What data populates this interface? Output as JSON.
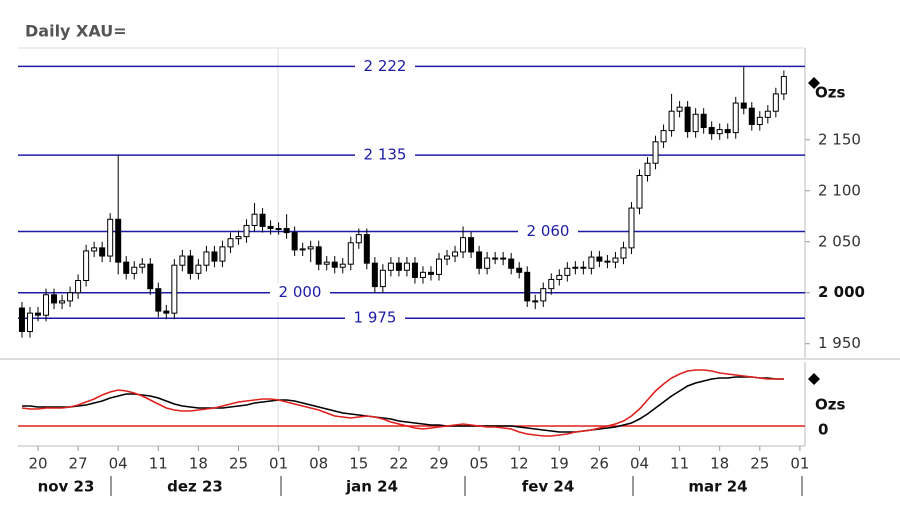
{
  "chart_data": {
    "type": "candlestick",
    "title": "Daily XAU=",
    "categories": [
      null,
      null,
      "20",
      null,
      null,
      null,
      null,
      "27",
      null,
      null,
      null,
      null,
      "04",
      null,
      null,
      null,
      null,
      "11",
      null,
      null,
      null,
      null,
      "18",
      null,
      null,
      null,
      null,
      "25",
      null,
      null,
      null,
      null,
      "01",
      null,
      null,
      null,
      null,
      "08",
      null,
      null,
      null,
      null,
      "15",
      null,
      null,
      null,
      null,
      "22",
      null,
      null,
      null,
      null,
      "29",
      null,
      null,
      null,
      null,
      "05",
      null,
      null,
      null,
      null,
      "12",
      null,
      null,
      null,
      null,
      "19",
      null,
      null,
      null,
      null,
      "26",
      null,
      null,
      null,
      null,
      "04",
      null,
      null,
      null,
      null,
      "11",
      null,
      null,
      null,
      null,
      "18",
      null,
      null,
      null,
      null,
      "25",
      null,
      null,
      null,
      null,
      "01"
    ],
    "months": [
      "nov 23",
      "dez 23",
      "jan 24",
      "fev 24",
      "mar 24"
    ],
    "open": [
      1985,
      1962,
      1980,
      1978,
      1998,
      1990,
      1992,
      2000,
      2012,
      2041,
      2044,
      2036,
      2072,
      2030,
      2019,
      2025,
      2028,
      2004,
      1982,
      1980,
      2027,
      2036,
      2019,
      2027,
      2040,
      2031,
      2045,
      2053,
      2055,
      2066,
      2077,
      2065,
      2063,
      2063,
      2059,
      2042,
      2043,
      2045,
      2028,
      2030,
      2025,
      2028,
      2049,
      2057,
      2029,
      2006,
      2022,
      2029,
      2022,
      2029,
      2015,
      2020,
      2018,
      2033,
      2036,
      2040,
      2054,
      2040,
      2024,
      2034,
      2034,
      2033,
      2024,
      2020,
      1992,
      1992,
      2004,
      2013,
      2017,
      2024,
      2025,
      2024,
      2035,
      2031,
      2030,
      2034,
      2044,
      2083,
      2115,
      2127,
      2148,
      2159,
      2178,
      2182,
      2158,
      2175,
      2162,
      2156,
      2160,
      2157,
      2186,
      2181,
      2165,
      2172,
      2178,
      2195,
      null,
      null
    ],
    "high": [
      1991,
      1986,
      1986,
      2004,
      2004,
      1998,
      2006,
      2018,
      2047,
      2050,
      2050,
      2078,
      2135,
      2036,
      2031,
      2034,
      2034,
      2010,
      1988,
      2033,
      2042,
      2042,
      2033,
      2046,
      2046,
      2051,
      2059,
      2061,
      2072,
      2088,
      2083,
      2071,
      2069,
      2077,
      2065,
      2049,
      2051,
      2051,
      2036,
      2036,
      2034,
      2055,
      2063,
      2063,
      2035,
      2028,
      2035,
      2035,
      2035,
      2035,
      2026,
      2026,
      2039,
      2042,
      2046,
      2065,
      2060,
      2046,
      2040,
      2040,
      2040,
      2039,
      2030,
      2026,
      1998,
      2010,
      2019,
      2023,
      2030,
      2031,
      2031,
      2041,
      2041,
      2037,
      2040,
      2050,
      2089,
      2121,
      2133,
      2154,
      2165,
      2195,
      2188,
      2188,
      2181,
      2181,
      2168,
      2166,
      2166,
      2192,
      2222,
      2187,
      2178,
      2184,
      2201,
      2218,
      null,
      null
    ],
    "low": [
      1956,
      1956,
      1972,
      1972,
      1984,
      1984,
      1986,
      1994,
      2006,
      2035,
      2030,
      2030,
      2018,
      2013,
      2013,
      2019,
      1998,
      1976,
      1974,
      1974,
      2021,
      2013,
      2013,
      2021,
      2025,
      2025,
      2039,
      2047,
      2049,
      2060,
      2059,
      2057,
      2057,
      2053,
      2036,
      2036,
      2030,
      2022,
      2022,
      2019,
      2019,
      2022,
      2043,
      2023,
      2000,
      2000,
      2016,
      2016,
      2016,
      2009,
      2009,
      2012,
      2012,
      2027,
      2030,
      2034,
      2034,
      2018,
      2018,
      2028,
      2027,
      2018,
      2014,
      1986,
      1984,
      1986,
      1998,
      2007,
      2011,
      2018,
      2018,
      2018,
      2025,
      2024,
      2024,
      2028,
      2038,
      2077,
      2109,
      2121,
      2142,
      2153,
      2172,
      2152,
      2152,
      2156,
      2150,
      2150,
      2151,
      2151,
      2175,
      2159,
      2159,
      2166,
      2172,
      2189,
      null,
      null
    ],
    "close": [
      1962,
      1980,
      1978,
      1998,
      1990,
      1992,
      2000,
      2012,
      2041,
      2044,
      2036,
      2072,
      2030,
      2019,
      2025,
      2028,
      2004,
      1982,
      1980,
      2027,
      2036,
      2019,
      2027,
      2040,
      2031,
      2045,
      2053,
      2055,
      2066,
      2077,
      2065,
      2063,
      2063,
      2059,
      2042,
      2043,
      2045,
      2028,
      2030,
      2025,
      2028,
      2049,
      2057,
      2029,
      2006,
      2022,
      2029,
      2022,
      2029,
      2015,
      2020,
      2018,
      2033,
      2036,
      2040,
      2054,
      2040,
      2024,
      2034,
      2034,
      2033,
      2024,
      2020,
      1992,
      1992,
      2004,
      2013,
      2017,
      2024,
      2025,
      2024,
      2035,
      2031,
      2030,
      2034,
      2044,
      2083,
      2115,
      2127,
      2148,
      2159,
      2178,
      2182,
      2158,
      2175,
      2162,
      2156,
      2160,
      2157,
      2186,
      2181,
      2165,
      2172,
      2178,
      2195,
      2212,
      null,
      null
    ],
    "up_color": "#ffffff",
    "down_color": "#000000",
    "ylim": [
      1936,
      2240
    ],
    "yticks": [
      {
        "value": 2150,
        "label": "2 150"
      },
      {
        "value": 2100,
        "label": "2 100"
      },
      {
        "value": 2050,
        "label": "2 050"
      },
      {
        "value": 2000,
        "label": "2 000"
      },
      {
        "value": 1950,
        "label": "1 950"
      }
    ],
    "y_unit": "Ozs",
    "level_color": "#1c1ca8",
    "levels": [
      {
        "value": 2222,
        "label": "2 222"
      },
      {
        "value": 2135,
        "label": "2 135"
      },
      {
        "value": 2060,
        "label": "2 060"
      },
      {
        "value": 2000,
        "label": "2 000"
      },
      {
        "value": 1975,
        "label": "1 975"
      }
    ],
    "indicator": {
      "ylim": [
        -20,
        64
      ],
      "yticks": [
        0
      ],
      "y_unit": "Ozs",
      "zero_color": "#e0201c",
      "series": [
        {
          "color": "#000000",
          "values": [
            20,
            20,
            19,
            19,
            19,
            19,
            19,
            20,
            21,
            23,
            25,
            28,
            30,
            32,
            32,
            31,
            30,
            28,
            25,
            22,
            20,
            19,
            18,
            18,
            18,
            18,
            19,
            20,
            21,
            23,
            24,
            25,
            26,
            26,
            25,
            23,
            21,
            19,
            17,
            15,
            13,
            12,
            11,
            10,
            9,
            8,
            7,
            5,
            4,
            3,
            2,
            1,
            1,
            0,
            0,
            0,
            0,
            0,
            0,
            0,
            0,
            0,
            -1,
            -2,
            -3,
            -4,
            -5,
            -6,
            -6,
            -6,
            -5,
            -4,
            -3,
            -2,
            -1,
            1,
            3,
            7,
            12,
            18,
            24,
            30,
            35,
            40,
            43,
            45,
            47,
            48,
            48,
            49,
            49,
            49,
            48,
            48,
            47,
            47,
            null,
            null
          ]
        },
        {
          "color": "#e0201c",
          "values": [
            18,
            17,
            17,
            18,
            18,
            18,
            19,
            21,
            24,
            27,
            31,
            34,
            36,
            35,
            33,
            30,
            26,
            22,
            18,
            16,
            15,
            15,
            16,
            17,
            18,
            20,
            22,
            24,
            25,
            26,
            27,
            27,
            26,
            24,
            22,
            20,
            18,
            16,
            13,
            10,
            9,
            8,
            9,
            10,
            9,
            7,
            4,
            2,
            0,
            -2,
            -3,
            -2,
            -1,
            0,
            1,
            2,
            1,
            0,
            -1,
            -1,
            -2,
            -3,
            -6,
            -8,
            -9,
            -10,
            -10,
            -9,
            -8,
            -6,
            -5,
            -4,
            -2,
            0,
            2,
            5,
            10,
            17,
            26,
            35,
            42,
            48,
            52,
            55,
            56,
            56,
            55,
            53,
            52,
            51,
            50,
            49,
            48,
            47,
            47,
            47,
            null,
            null
          ]
        }
      ]
    }
  }
}
